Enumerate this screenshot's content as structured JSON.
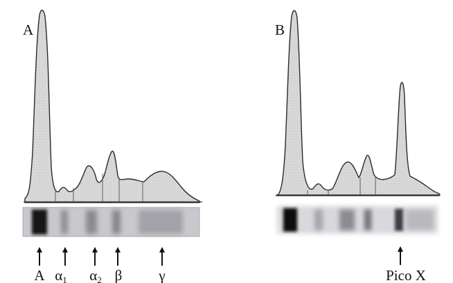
{
  "figure": {
    "panels": [
      {
        "label": "A",
        "markers": [
          {
            "id": "A",
            "text": "A",
            "sub": ""
          },
          {
            "id": "alpha1",
            "text": "α",
            "sub": "1"
          },
          {
            "id": "alpha2",
            "text": "α",
            "sub": "2"
          },
          {
            "id": "beta",
            "text": "β",
            "sub": ""
          },
          {
            "id": "gamma",
            "text": "γ",
            "sub": ""
          }
        ]
      },
      {
        "label": "B",
        "markers": [
          {
            "id": "picox",
            "text": "Pico X",
            "sub": ""
          }
        ]
      }
    ],
    "colors": {
      "curve_fill": "#dcdcdc",
      "curve_stroke": "#2a2a2a",
      "gel_background": "#c9c9cd",
      "band_dark": "#141414"
    }
  }
}
